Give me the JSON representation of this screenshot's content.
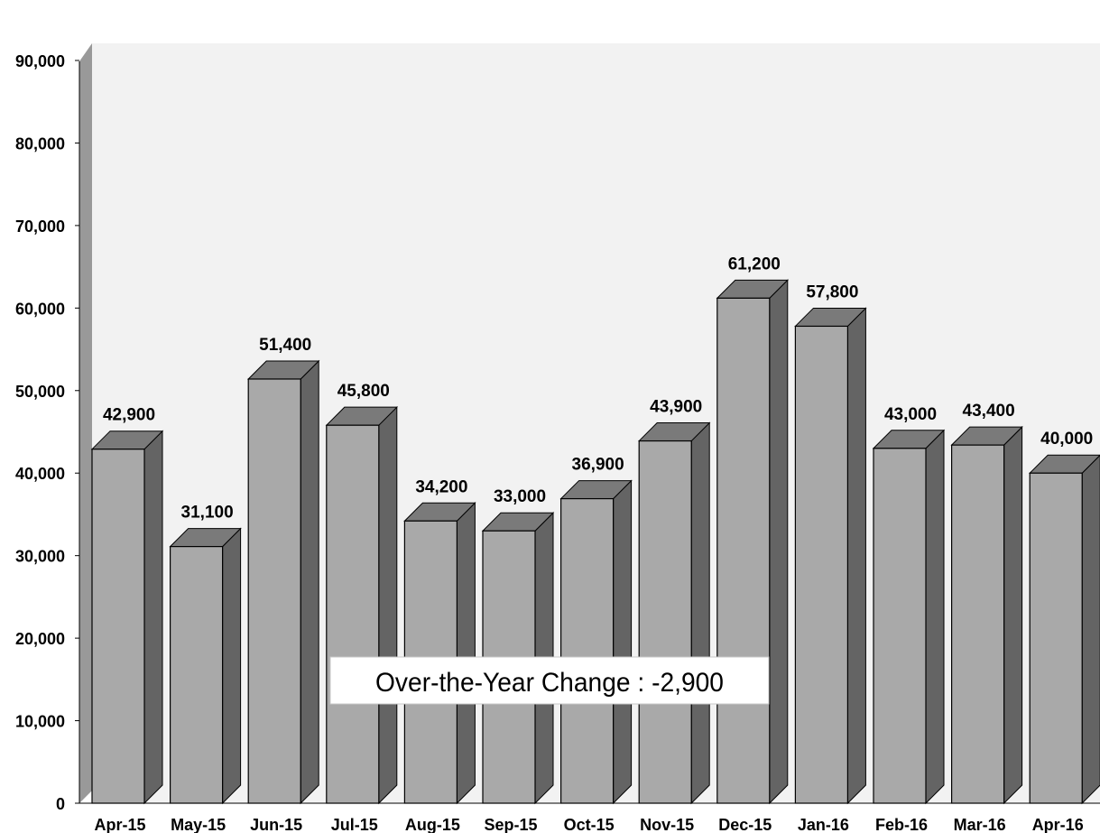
{
  "chart_data": {
    "type": "bar",
    "title": "",
    "xlabel": "",
    "ylabel": "",
    "categories": [
      "Apr-15",
      "May-15",
      "Jun-15",
      "Jul-15",
      "Aug-15",
      "Sep-15",
      "Oct-15",
      "Nov-15",
      "Dec-15",
      "Jan-16",
      "Feb-16",
      "Mar-16",
      "Apr-16"
    ],
    "values": [
      42900,
      31100,
      51400,
      45800,
      34200,
      33000,
      36900,
      43900,
      61200,
      57800,
      43000,
      43400,
      40000
    ],
    "data_labels": [
      "42,900",
      "31,100",
      "51,400",
      "45,800",
      "34,200",
      "33,000",
      "36,900",
      "43,900",
      "61,200",
      "57,800",
      "43,000",
      "43,400",
      "40,000"
    ],
    "y_ticks": [
      "0",
      "10,000",
      "20,000",
      "30,000",
      "40,000",
      "50,000",
      "60,000",
      "70,000",
      "80,000",
      "90,000"
    ],
    "ylim": [
      0,
      90000
    ],
    "grid": false,
    "annotation": "Over-the-Year Change : -2,900",
    "colors": {
      "bar_front": "#a9a9a9",
      "bar_side": "#646464",
      "bar_top": "#7a7a7a",
      "plot_background": "#f2f2f2",
      "left_wall": "#999999"
    }
  }
}
